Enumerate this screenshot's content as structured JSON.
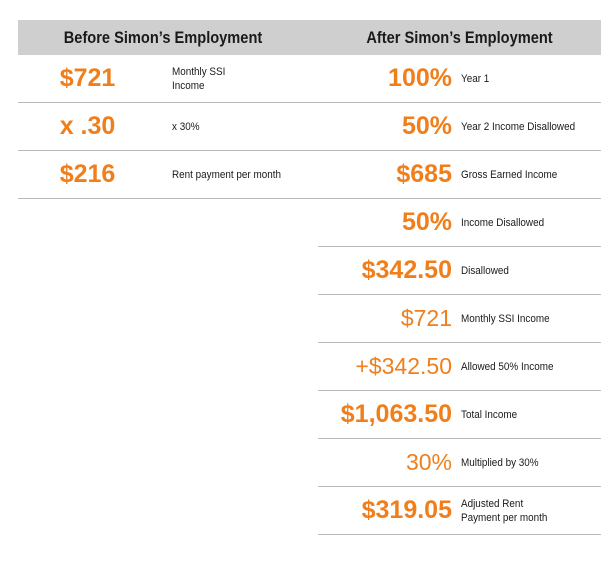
{
  "header": {
    "left_title": "Before Simon’s Employment",
    "right_title": "After Simon’s Employment"
  },
  "colors": {
    "accent": "#f07f1b",
    "header_bg": "#cfcfd0",
    "divider": "#b9b9b9",
    "text": "#1a1a1a"
  },
  "before": [
    {
      "value": "$721",
      "label": "Monthly SSI Income"
    },
    {
      "value": "x .30",
      "label": "x 30%"
    },
    {
      "value": "$216",
      "label": "Rent payment per month"
    }
  ],
  "after": [
    {
      "value": "100%",
      "label": "Year 1"
    },
    {
      "value": "50%",
      "label": "Year 2 Income Disallowed"
    },
    {
      "value": "$685",
      "label": "Gross Earned Income"
    },
    {
      "value": "50%",
      "label": "Income Disallowed"
    },
    {
      "value": "$342.50",
      "label": "Disallowed"
    },
    {
      "value": "$721",
      "label": "Monthly SSI Income"
    },
    {
      "value": "+$342.50",
      "label": "Allowed 50% Income"
    },
    {
      "value": "$1,063.50",
      "label": "Total Income"
    },
    {
      "value": "30%",
      "label": "Multiplied by 30%"
    },
    {
      "value": "$319.05",
      "label": "Adjusted Rent Payment per month"
    }
  ]
}
